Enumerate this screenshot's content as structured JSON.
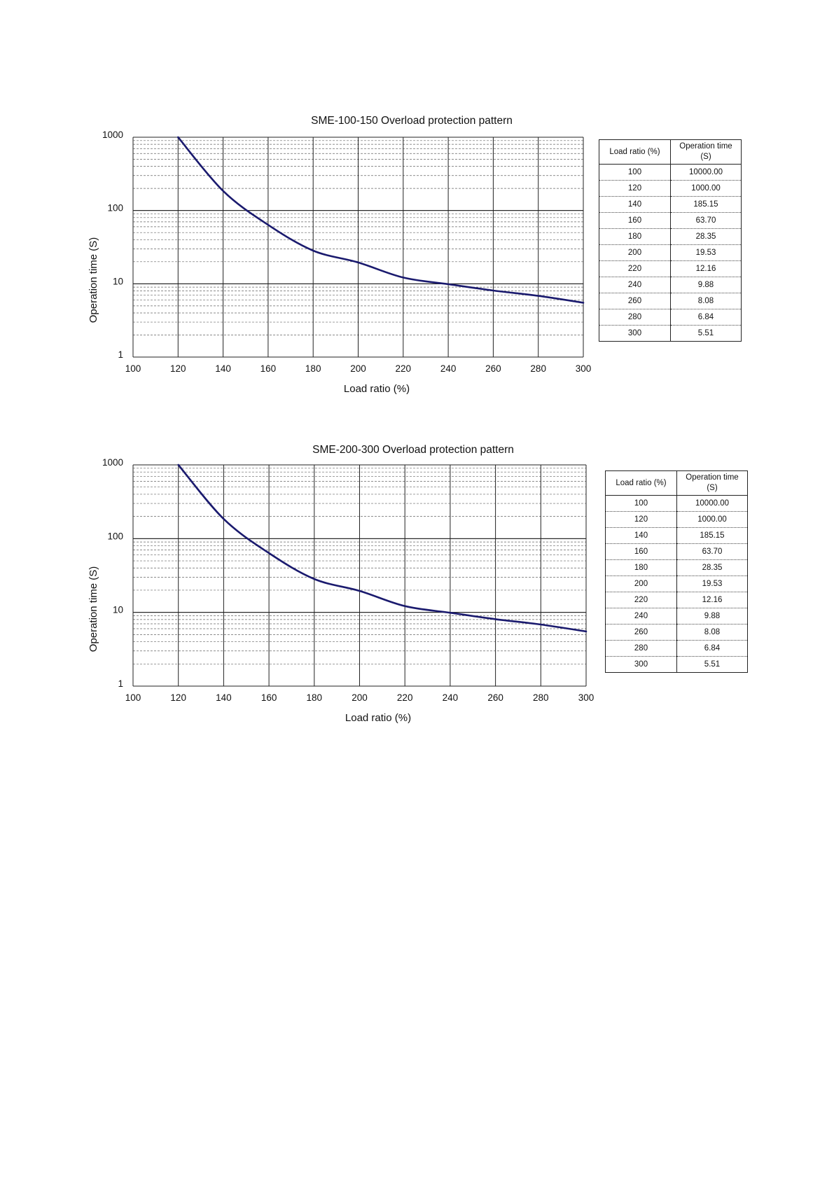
{
  "charts": [
    {
      "table": {
        "headers": [
          "Load ratio (%)",
          "Operation time (S)"
        ],
        "rows": [
          [
            "100",
            "10000.00"
          ],
          [
            "120",
            "1000.00"
          ],
          [
            "140",
            "185.15"
          ],
          [
            "160",
            "63.70"
          ],
          [
            "180",
            "28.35"
          ],
          [
            "200",
            "19.53"
          ],
          [
            "220",
            "12.16"
          ],
          [
            "240",
            "9.88"
          ],
          [
            "260",
            "8.08"
          ],
          [
            "280",
            "6.84"
          ],
          [
            "300",
            "5.51"
          ]
        ]
      }
    },
    {
      "table": {
        "headers": [
          "Load ratio (%)",
          "Operation time (S)"
        ],
        "rows": [
          [
            "100",
            "10000.00"
          ],
          [
            "120",
            "1000.00"
          ],
          [
            "140",
            "185.15"
          ],
          [
            "160",
            "63.70"
          ],
          [
            "180",
            "28.35"
          ],
          [
            "200",
            "19.53"
          ],
          [
            "220",
            "12.16"
          ],
          [
            "240",
            "9.88"
          ],
          [
            "260",
            "8.08"
          ],
          [
            "280",
            "6.84"
          ],
          [
            "300",
            "5.51"
          ]
        ]
      }
    }
  ],
  "chart_data": [
    {
      "type": "line",
      "title": "SME-100-150 Overload protection pattern",
      "xlabel": "Load ratio (%)",
      "ylabel": "Operation time (S)",
      "x_ticks": [
        "100",
        "120",
        "140",
        "160",
        "180",
        "200",
        "220",
        "240",
        "260",
        "280",
        "300"
      ],
      "y_ticks": [
        "1",
        "10",
        "100",
        "1000"
      ],
      "xlim": [
        100,
        300
      ],
      "ylim": [
        1,
        1000
      ],
      "y_scale": "log",
      "grid": true,
      "line_color": "#1a1a6e",
      "series": [
        {
          "x": [
            120,
            140,
            160,
            180,
            200,
            220,
            240,
            260,
            280,
            300
          ],
          "values": [
            1000,
            185.15,
            63.7,
            28.35,
            19.53,
            12.16,
            9.88,
            8.08,
            6.84,
            5.51
          ]
        }
      ]
    },
    {
      "type": "line",
      "title": "SME-200-300 Overload protection pattern",
      "xlabel": "Load ratio (%)",
      "ylabel": "Operation time (S)",
      "x_ticks": [
        "100",
        "120",
        "140",
        "160",
        "180",
        "200",
        "220",
        "240",
        "260",
        "280",
        "300"
      ],
      "y_ticks": [
        "1",
        "10",
        "100",
        "1000"
      ],
      "xlim": [
        100,
        300
      ],
      "ylim": [
        1,
        1000
      ],
      "y_scale": "log",
      "grid": true,
      "line_color": "#1a1a6e",
      "series": [
        {
          "x": [
            120,
            140,
            160,
            180,
            200,
            220,
            240,
            260,
            280,
            300
          ],
          "values": [
            1000,
            185.15,
            63.7,
            28.35,
            19.53,
            12.16,
            9.88,
            8.08,
            6.84,
            5.51
          ]
        }
      ]
    }
  ]
}
